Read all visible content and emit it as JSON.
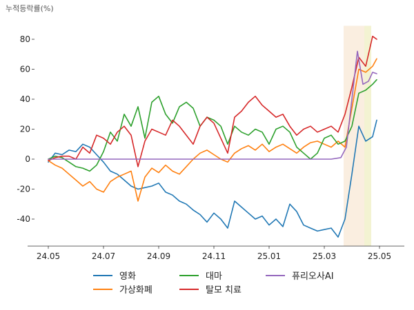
{
  "chart_data": {
    "type": "line",
    "ylabel": "누적등락률(%)",
    "xlabel": "",
    "x_ticks": [
      "24.05",
      "24.07",
      "24.09",
      "24.11",
      "25.01",
      "25.03",
      "25.05"
    ],
    "y_ticks": [
      -40,
      -20,
      0,
      20,
      40,
      60,
      80
    ],
    "ylim": [
      -58,
      89
    ],
    "xlim": [
      -1.5,
      25.8
    ],
    "x_unit": "months since 24.05 (tick 24.05 = 0)",
    "grid": false,
    "legend_position": "bottom",
    "highlight_bands": [
      {
        "x0": 21.4,
        "x1": 22.9,
        "color": "#faeee0"
      },
      {
        "x0": 22.9,
        "x1": 23.4,
        "color": "#f3f3d2"
      }
    ],
    "series": [
      {
        "name": "영화",
        "color": "#1f77b4",
        "points": [
          [
            0,
            -2
          ],
          [
            0.5,
            4
          ],
          [
            1,
            3
          ],
          [
            1.5,
            6
          ],
          [
            2,
            5
          ],
          [
            2.5,
            10
          ],
          [
            3,
            8
          ],
          [
            3.5,
            3
          ],
          [
            4,
            -2
          ],
          [
            4.5,
            -8
          ],
          [
            5,
            -10
          ],
          [
            5.5,
            -14
          ],
          [
            6,
            -18
          ],
          [
            6.5,
            -20
          ],
          [
            7,
            -19
          ],
          [
            7.5,
            -18
          ],
          [
            8,
            -16
          ],
          [
            8.5,
            -22
          ],
          [
            9,
            -24
          ],
          [
            9.5,
            -28
          ],
          [
            10,
            -30
          ],
          [
            10.5,
            -34
          ],
          [
            11,
            -37
          ],
          [
            11.5,
            -42
          ],
          [
            12,
            -36
          ],
          [
            12.5,
            -40
          ],
          [
            13,
            -46
          ],
          [
            13.5,
            -28
          ],
          [
            14,
            -32
          ],
          [
            14.5,
            -36
          ],
          [
            15,
            -40
          ],
          [
            15.5,
            -38
          ],
          [
            16,
            -44
          ],
          [
            16.5,
            -40
          ],
          [
            17,
            -45
          ],
          [
            17.5,
            -30
          ],
          [
            18,
            -35
          ],
          [
            18.5,
            -44
          ],
          [
            19,
            -46
          ],
          [
            19.5,
            -48
          ],
          [
            20,
            -47
          ],
          [
            20.5,
            -46
          ],
          [
            21,
            -52
          ],
          [
            21.5,
            -40
          ],
          [
            22,
            -10
          ],
          [
            22.5,
            22
          ],
          [
            23,
            12
          ],
          [
            23.5,
            15
          ],
          [
            23.8,
            26
          ]
        ]
      },
      {
        "name": "가상화폐",
        "color": "#ff7f0e",
        "points": [
          [
            0,
            -1
          ],
          [
            0.5,
            -4
          ],
          [
            1,
            -6
          ],
          [
            1.5,
            -10
          ],
          [
            2,
            -14
          ],
          [
            2.5,
            -18
          ],
          [
            3,
            -15
          ],
          [
            3.5,
            -20
          ],
          [
            4,
            -22
          ],
          [
            4.5,
            -15
          ],
          [
            5,
            -12
          ],
          [
            5.5,
            -10
          ],
          [
            6,
            -8
          ],
          [
            6.5,
            -28
          ],
          [
            7,
            -12
          ],
          [
            7.5,
            -6
          ],
          [
            8,
            -9
          ],
          [
            8.5,
            -4
          ],
          [
            9,
            -8
          ],
          [
            9.5,
            -10
          ],
          [
            10,
            -5
          ],
          [
            10.5,
            0
          ],
          [
            11,
            4
          ],
          [
            11.5,
            6
          ],
          [
            12,
            3
          ],
          [
            12.5,
            0
          ],
          [
            13,
            -2
          ],
          [
            13.5,
            4
          ],
          [
            14,
            7
          ],
          [
            14.5,
            9
          ],
          [
            15,
            6
          ],
          [
            15.5,
            10
          ],
          [
            16,
            5
          ],
          [
            16.5,
            8
          ],
          [
            17,
            10
          ],
          [
            17.5,
            7
          ],
          [
            18,
            4
          ],
          [
            18.5,
            8
          ],
          [
            19,
            11
          ],
          [
            19.5,
            12
          ],
          [
            20,
            10
          ],
          [
            20.5,
            8
          ],
          [
            21,
            12
          ],
          [
            21.5,
            8
          ],
          [
            22,
            34
          ],
          [
            22.5,
            60
          ],
          [
            23,
            58
          ],
          [
            23.5,
            62
          ],
          [
            23.8,
            67
          ]
        ]
      },
      {
        "name": "대마",
        "color": "#2ca02c",
        "points": [
          [
            0,
            0
          ],
          [
            0.5,
            2
          ],
          [
            1,
            1
          ],
          [
            1.5,
            -2
          ],
          [
            2,
            -5
          ],
          [
            2.5,
            -6
          ],
          [
            3,
            -8
          ],
          [
            3.5,
            -4
          ],
          [
            4,
            5
          ],
          [
            4.5,
            18
          ],
          [
            5,
            12
          ],
          [
            5.5,
            30
          ],
          [
            6,
            22
          ],
          [
            6.5,
            35
          ],
          [
            7,
            14
          ],
          [
            7.5,
            38
          ],
          [
            8,
            42
          ],
          [
            8.5,
            30
          ],
          [
            9,
            24
          ],
          [
            9.5,
            35
          ],
          [
            10,
            38
          ],
          [
            10.5,
            34
          ],
          [
            11,
            22
          ],
          [
            11.5,
            28
          ],
          [
            12,
            26
          ],
          [
            12.5,
            22
          ],
          [
            13,
            10
          ],
          [
            13.5,
            22
          ],
          [
            14,
            18
          ],
          [
            14.5,
            16
          ],
          [
            15,
            20
          ],
          [
            15.5,
            18
          ],
          [
            16,
            10
          ],
          [
            16.5,
            20
          ],
          [
            17,
            22
          ],
          [
            17.5,
            18
          ],
          [
            18,
            8
          ],
          [
            18.5,
            4
          ],
          [
            19,
            0
          ],
          [
            19.5,
            4
          ],
          [
            20,
            14
          ],
          [
            20.5,
            16
          ],
          [
            21,
            10
          ],
          [
            21.5,
            12
          ],
          [
            22,
            22
          ],
          [
            22.5,
            44
          ],
          [
            23,
            46
          ],
          [
            23.5,
            50
          ],
          [
            23.8,
            53
          ]
        ]
      },
      {
        "name": "탈모 치료",
        "color": "#d62728",
        "points": [
          [
            0,
            -1
          ],
          [
            0.5,
            1
          ],
          [
            1,
            2
          ],
          [
            1.5,
            2
          ],
          [
            2,
            0
          ],
          [
            2.5,
            8
          ],
          [
            3,
            4
          ],
          [
            3.5,
            16
          ],
          [
            4,
            14
          ],
          [
            4.5,
            10
          ],
          [
            5,
            18
          ],
          [
            5.5,
            22
          ],
          [
            6,
            16
          ],
          [
            6.5,
            -5
          ],
          [
            7,
            12
          ],
          [
            7.5,
            20
          ],
          [
            8,
            18
          ],
          [
            8.5,
            16
          ],
          [
            9,
            26
          ],
          [
            9.5,
            22
          ],
          [
            10,
            16
          ],
          [
            10.5,
            10
          ],
          [
            11,
            22
          ],
          [
            11.5,
            28
          ],
          [
            12,
            24
          ],
          [
            12.5,
            14
          ],
          [
            13,
            4
          ],
          [
            13.5,
            28
          ],
          [
            14,
            32
          ],
          [
            14.5,
            38
          ],
          [
            15,
            42
          ],
          [
            15.5,
            36
          ],
          [
            16,
            32
          ],
          [
            16.5,
            28
          ],
          [
            17,
            30
          ],
          [
            17.5,
            22
          ],
          [
            18,
            16
          ],
          [
            18.5,
            20
          ],
          [
            19,
            22
          ],
          [
            19.5,
            18
          ],
          [
            20,
            20
          ],
          [
            20.5,
            22
          ],
          [
            21,
            18
          ],
          [
            21.5,
            30
          ],
          [
            22,
            48
          ],
          [
            22.5,
            68
          ],
          [
            23,
            62
          ],
          [
            23.5,
            82
          ],
          [
            23.8,
            80
          ]
        ]
      },
      {
        "name": "퓨리오사AI",
        "color": "#9467bd",
        "points": [
          [
            0,
            0
          ],
          [
            20.5,
            0
          ],
          [
            21.2,
            1
          ],
          [
            21.6,
            8
          ],
          [
            22,
            40
          ],
          [
            22.4,
            72
          ],
          [
            22.8,
            50
          ],
          [
            23.2,
            52
          ],
          [
            23.5,
            58
          ],
          [
            23.8,
            57
          ]
        ]
      }
    ]
  }
}
